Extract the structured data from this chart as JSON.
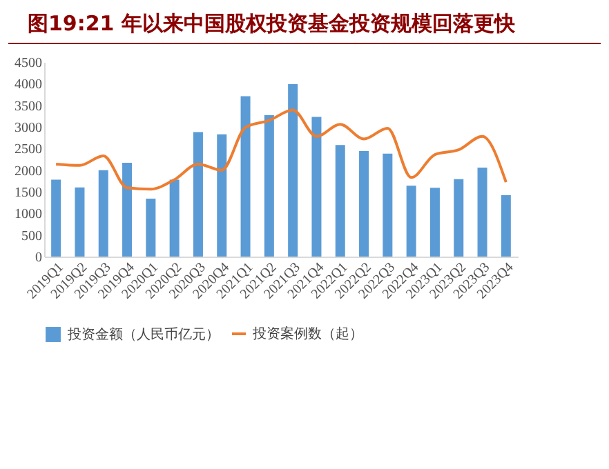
{
  "chart_data": {
    "type": "bar",
    "title": "图19:21 年以来中国股权投资基金投资规模回落更快",
    "categories": [
      "2019Q1",
      "2019Q2",
      "2019Q3",
      "2019Q4",
      "2020Q1",
      "2020Q2",
      "2020Q3",
      "2020Q4",
      "2021Q1",
      "2021Q2",
      "2021Q3",
      "2021Q4",
      "2022Q1",
      "2022Q2",
      "2022Q3",
      "2022Q4",
      "2023Q1",
      "2023Q2",
      "2023Q3",
      "2023Q4"
    ],
    "series": [
      {
        "name": "投资金额（人民币亿元）",
        "color": "#5b9bd5",
        "values": [
          1780,
          1600,
          2000,
          2170,
          1340,
          1780,
          2880,
          2830,
          3710,
          3270,
          3990,
          3230,
          2580,
          2440,
          2380,
          1640,
          1590,
          1790,
          2060,
          1420
        ]
      },
      {
        "name": "投资案例数（起）",
        "type": "line",
        "color": "#ed7d31",
        "values": [
          2140,
          2110,
          2330,
          1590,
          1560,
          1780,
          2140,
          2000,
          2990,
          3150,
          3390,
          2780,
          3060,
          2720,
          2970,
          1830,
          2360,
          2470,
          2780,
          1720
        ]
      }
    ],
    "ylim": [
      0,
      4500
    ],
    "yticks": [
      0,
      500,
      1000,
      1500,
      2000,
      2500,
      3000,
      3500,
      4000,
      4500
    ],
    "legend": "bottom"
  }
}
